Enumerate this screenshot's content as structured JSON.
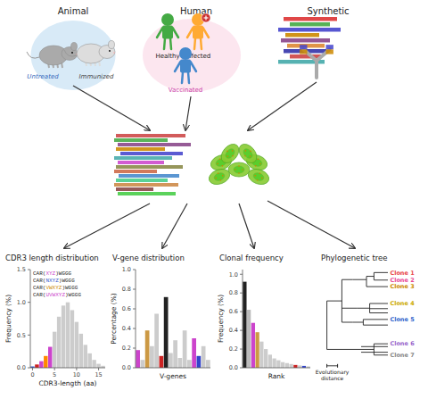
{
  "chart_data": [
    {
      "type": "diagram",
      "categories": [
        "Animal",
        "Human",
        "Synthetic"
      ],
      "annotations": [
        "Untreated",
        "Immunized",
        "Healthy",
        "Infected",
        "Vaccinated"
      ]
    },
    {
      "type": "bar",
      "title": "CDR3 length distribution",
      "xlabel": "CDR3-length (aa)",
      "ylabel": "Frequency (%)",
      "categories": [
        "0",
        null,
        null,
        null,
        null,
        "5",
        null,
        null,
        null,
        null,
        "10",
        null,
        null,
        null,
        null,
        "15",
        null
      ],
      "values": [
        0.02,
        0.05,
        0.1,
        0.18,
        0.32,
        0.55,
        0.78,
        0.95,
        1.0,
        0.88,
        0.7,
        0.52,
        0.35,
        0.22,
        0.12,
        0.06,
        0.03
      ],
      "colors": [
        "#3355cc",
        "#cc2222",
        "#cc44cc",
        "#ff8800",
        "#cc44cc",
        "#cccccc",
        "#cccccc",
        "#cccccc",
        "#cccccc",
        "#cccccc",
        "#cccccc",
        "#cccccc",
        "#cccccc",
        "#cccccc",
        "#cccccc",
        "#cccccc",
        "#cccccc"
      ],
      "ylim": [
        0,
        1.5
      ],
      "yticks": [
        {
          "value": 0,
          "label": "0.0"
        },
        {
          "value": 0.5,
          "label": "0.5"
        },
        {
          "value": 1,
          "label": "1.0"
        },
        {
          "value": 1.5,
          "label": "1.5"
        }
      ],
      "grid": false,
      "annotations": [
        "CAR(XYZ)WGGG",
        "CAR(NXYZ)WGGG",
        "CAR(VWXYZ)WGGG",
        "CAR(UVWXYZ)WGGG"
      ]
    },
    {
      "type": "bar",
      "title": "V-gene distribution",
      "xlabel": "V-genes",
      "ylabel": "Percentage (%)",
      "values": [
        0.18,
        0.08,
        0.38,
        0.22,
        0.55,
        0.12,
        0.72,
        0.15,
        0.28,
        0.1,
        0.38,
        0.08,
        0.3,
        0.12,
        0.22,
        0.08
      ],
      "colors": [
        "#cc44cc",
        "#cccccc",
        "#cc9944",
        "#cccccc",
        "#cccccc",
        "#cc2222",
        "#222222",
        "#cccccc",
        "#cccccc",
        "#cccccc",
        "#cccccc",
        "#cccccc",
        "#cc44cc",
        "#3344cc",
        "#cccccc",
        "#cccccc"
      ],
      "ylim": [
        0,
        1.0
      ],
      "yticks": [
        {
          "value": 0,
          "label": "0.0"
        },
        {
          "value": 0.2,
          "label": "0.2"
        },
        {
          "value": 0.4,
          "label": "0.4"
        },
        {
          "value": 0.6,
          "label": "0.6"
        },
        {
          "value": 0.8,
          "label": "0.8"
        },
        {
          "value": 1,
          "label": "1.0"
        }
      ],
      "grid": false,
      "tick_labels": "y"
    },
    {
      "type": "bar",
      "title": "Clonal frequency",
      "xlabel": "Rank",
      "ylabel": "Frequency (%)",
      "values": [
        0.92,
        0.62,
        0.48,
        0.38,
        0.28,
        0.2,
        0.14,
        0.1,
        0.08,
        0.06,
        0.05,
        0.04,
        0.03,
        0.025,
        0.02,
        0.015
      ],
      "colors": [
        "#222222",
        "#bbbbbb",
        "#cc44cc",
        "#cc9944",
        "#cccccc",
        "#cccccc",
        "#cccccc",
        "#cccccc",
        "#cccccc",
        "#cccccc",
        "#cccccc",
        "#cccccc",
        "#cc2222",
        "#cccccc",
        "#3344cc",
        "#cccccc"
      ],
      "ylim": [
        0,
        1.05
      ],
      "yticks": [
        {
          "value": 0,
          "label": "0.0"
        },
        {
          "value": 0.2,
          "label": "0.2"
        },
        {
          "value": 0.4,
          "label": "0.4"
        },
        {
          "value": 0.6,
          "label": "0.6"
        },
        {
          "value": 0.8,
          "label": "0.8"
        },
        {
          "value": 1,
          "label": "1.0"
        }
      ],
      "grid": false,
      "tick_labels": "y"
    },
    {
      "type": "tree",
      "title": "Phylogenetic tree",
      "categories": [
        "Clone 1",
        "Clone 2",
        "Clone 3",
        "Clone 4",
        "Clone 5",
        "Clone 6",
        "Clone 7"
      ],
      "colors": [
        "#e8474a",
        "#e84795",
        "#cc8800",
        "#ccaa00",
        "#3366cc",
        "#9966cc",
        "#888888"
      ],
      "annotations": [
        "Evolutionary\ndistance"
      ]
    }
  ]
}
